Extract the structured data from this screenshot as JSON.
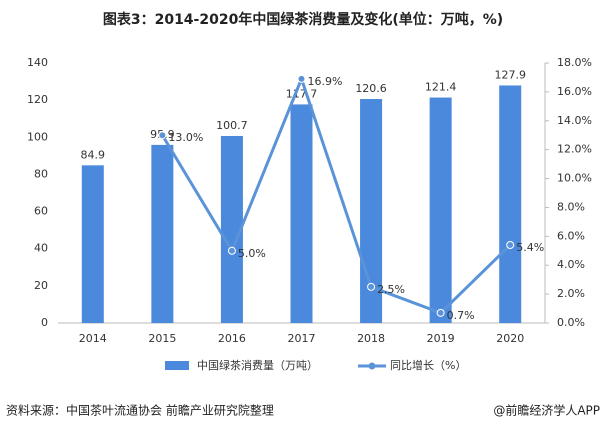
{
  "chart_data": {
    "type": "bar",
    "title": "图表3：2014-2020年中国绿茶消费量及变化(单位：万吨，%)",
    "categories": [
      "2014",
      "2015",
      "2016",
      "2017",
      "2018",
      "2019",
      "2020"
    ],
    "series": [
      {
        "name": "中国绿茶消费量（万吨）",
        "type": "bar",
        "color": "#4a89dc",
        "values": [
          84.9,
          95.9,
          100.7,
          117.7,
          120.6,
          121.4,
          127.9
        ]
      },
      {
        "name": "同比增长（%）",
        "type": "line",
        "axis": "y2",
        "color": "#5b93d9",
        "values": [
          null,
          13.0,
          5.0,
          16.9,
          2.5,
          0.7,
          5.4
        ],
        "value_labels": [
          null,
          "13.0%",
          "5.0%",
          "16.9%",
          "2.5%",
          "0.7%",
          "5.4%"
        ]
      }
    ],
    "ylim": [
      0,
      140
    ],
    "yticks": [
      0,
      20,
      40,
      60,
      80,
      100,
      120,
      140
    ],
    "y2lim": [
      0,
      18
    ],
    "y2ticks": [
      {
        "value": 0,
        "label": "0.0%"
      },
      {
        "value": 2,
        "label": "2.0%"
      },
      {
        "value": 4,
        "label": "4.0%"
      },
      {
        "value": 6,
        "label": "6.0%"
      },
      {
        "value": 8,
        "label": "8.0%"
      },
      {
        "value": 10,
        "label": "10.0%"
      },
      {
        "value": 12,
        "label": "12.0%"
      },
      {
        "value": 14,
        "label": "14.0%"
      },
      {
        "value": 16,
        "label": "16.0%"
      },
      {
        "value": 18,
        "label": "18.0%"
      }
    ],
    "grid": false
  },
  "source": "资料来源：中国茶叶流通协会 前瞻产业研究院整理",
  "credit": "@前瞻经济学人APP"
}
